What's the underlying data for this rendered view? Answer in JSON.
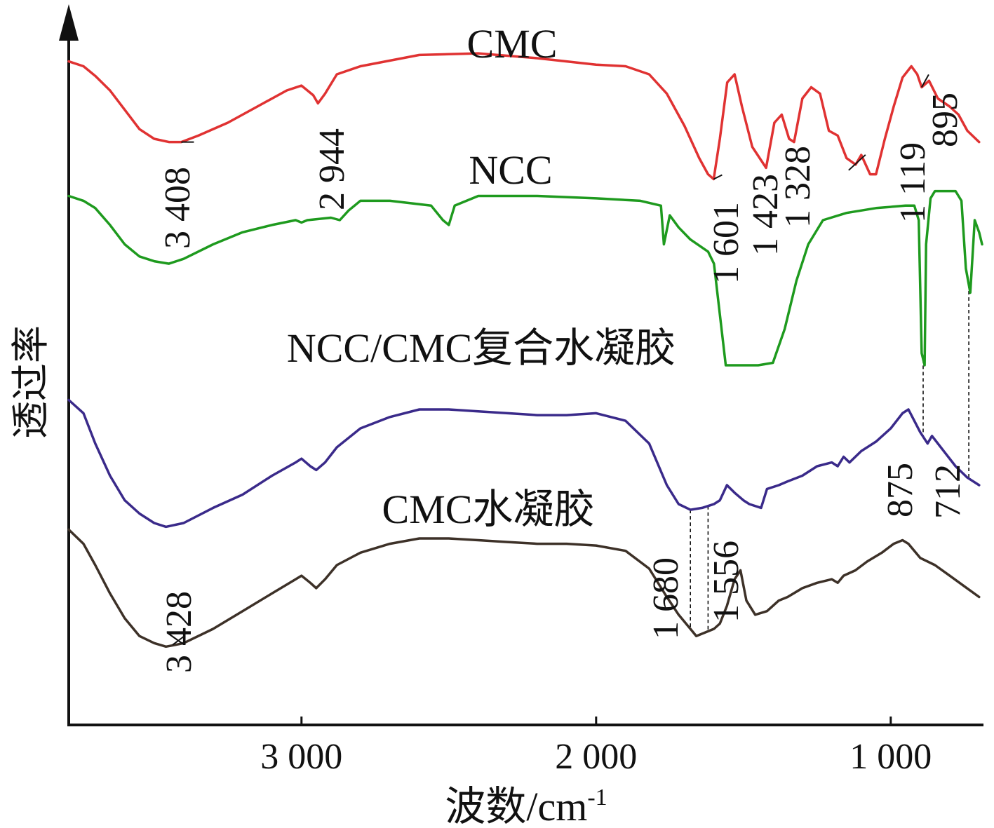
{
  "chart_data": {
    "type": "line",
    "xlabel": "波数/cm",
    "xlabel_sup": "-1",
    "ylabel": "透过率",
    "xlim": [
      3790,
      690
    ],
    "x_reversed": true,
    "x_ticks": [
      {
        "value": 3000,
        "label": "3 000"
      },
      {
        "value": 2000,
        "label": "2 000"
      },
      {
        "value": 1000,
        "label": "1 000"
      }
    ],
    "y_ticks_shown": false,
    "grid": false,
    "series": [
      {
        "name": "CMC",
        "color": "#e03232",
        "points": [
          [
            3790,
            88
          ],
          [
            3740,
            85
          ],
          [
            3700,
            79
          ],
          [
            3650,
            70
          ],
          [
            3600,
            58
          ],
          [
            3550,
            46
          ],
          [
            3500,
            40
          ],
          [
            3450,
            38
          ],
          [
            3408,
            38
          ],
          [
            3350,
            42
          ],
          [
            3250,
            50
          ],
          [
            3150,
            60
          ],
          [
            3050,
            70
          ],
          [
            3000,
            73
          ],
          [
            2960,
            67
          ],
          [
            2944,
            62
          ],
          [
            2920,
            68
          ],
          [
            2880,
            80
          ],
          [
            2800,
            85
          ],
          [
            2600,
            92
          ],
          [
            2400,
            93
          ],
          [
            2200,
            90
          ],
          [
            2000,
            86
          ],
          [
            1900,
            85
          ],
          [
            1820,
            80
          ],
          [
            1760,
            68
          ],
          [
            1700,
            48
          ],
          [
            1650,
            28
          ],
          [
            1620,
            18
          ],
          [
            1601,
            15
          ],
          [
            1580,
            40
          ],
          [
            1555,
            75
          ],
          [
            1530,
            80
          ],
          [
            1505,
            60
          ],
          [
            1470,
            35
          ],
          [
            1423,
            22
          ],
          [
            1395,
            50
          ],
          [
            1370,
            55
          ],
          [
            1345,
            40
          ],
          [
            1328,
            38
          ],
          [
            1300,
            65
          ],
          [
            1270,
            72
          ],
          [
            1240,
            68
          ],
          [
            1210,
            45
          ],
          [
            1180,
            42
          ],
          [
            1150,
            28
          ],
          [
            1119,
            24
          ],
          [
            1100,
            30
          ],
          [
            1070,
            18
          ],
          [
            1050,
            18
          ],
          [
            1020,
            40
          ],
          [
            990,
            60
          ],
          [
            960,
            78
          ],
          [
            930,
            85
          ],
          [
            910,
            80
          ],
          [
            895,
            72
          ],
          [
            870,
            76
          ],
          [
            840,
            65
          ],
          [
            800,
            60
          ],
          [
            770,
            55
          ],
          [
            740,
            45
          ],
          [
            700,
            38
          ]
        ]
      },
      {
        "name": "NCC",
        "color": "#1e9a1e",
        "points": [
          [
            3790,
            90
          ],
          [
            3740,
            88
          ],
          [
            3700,
            85
          ],
          [
            3650,
            78
          ],
          [
            3600,
            70
          ],
          [
            3550,
            65
          ],
          [
            3500,
            63
          ],
          [
            3450,
            62
          ],
          [
            3400,
            64
          ],
          [
            3300,
            70
          ],
          [
            3200,
            75
          ],
          [
            3100,
            78
          ],
          [
            3020,
            80
          ],
          [
            3000,
            79
          ],
          [
            2980,
            80
          ],
          [
            2900,
            81
          ],
          [
            2870,
            80
          ],
          [
            2840,
            84
          ],
          [
            2800,
            88
          ],
          [
            2700,
            88
          ],
          [
            2560,
            86
          ],
          [
            2520,
            80
          ],
          [
            2500,
            78
          ],
          [
            2480,
            86
          ],
          [
            2400,
            90
          ],
          [
            2200,
            90
          ],
          [
            2000,
            89
          ],
          [
            1850,
            88
          ],
          [
            1780,
            86
          ],
          [
            1770,
            70
          ],
          [
            1750,
            82
          ],
          [
            1720,
            77
          ],
          [
            1680,
            72
          ],
          [
            1620,
            67
          ],
          [
            1600,
            62
          ],
          [
            1560,
            20
          ],
          [
            1520,
            20
          ],
          [
            1450,
            20
          ],
          [
            1400,
            21
          ],
          [
            1360,
            35
          ],
          [
            1320,
            55
          ],
          [
            1280,
            70
          ],
          [
            1230,
            80
          ],
          [
            1150,
            83
          ],
          [
            1050,
            85
          ],
          [
            950,
            86
          ],
          [
            920,
            86
          ],
          [
            905,
            80
          ],
          [
            895,
            25
          ],
          [
            885,
            20
          ],
          [
            880,
            70
          ],
          [
            865,
            89
          ],
          [
            850,
            92
          ],
          [
            800,
            92
          ],
          [
            780,
            92
          ],
          [
            760,
            88
          ],
          [
            745,
            60
          ],
          [
            730,
            50
          ],
          [
            715,
            80
          ],
          [
            700,
            75
          ],
          [
            690,
            70
          ]
        ]
      },
      {
        "name": "NCC/CMC复合水凝胶",
        "color": "#3a2a8a",
        "points": [
          [
            3790,
            85
          ],
          [
            3740,
            78
          ],
          [
            3700,
            62
          ],
          [
            3650,
            45
          ],
          [
            3600,
            32
          ],
          [
            3550,
            25
          ],
          [
            3500,
            20
          ],
          [
            3460,
            18
          ],
          [
            3400,
            20
          ],
          [
            3300,
            28
          ],
          [
            3200,
            35
          ],
          [
            3100,
            45
          ],
          [
            3020,
            52
          ],
          [
            3000,
            54
          ],
          [
            2970,
            50
          ],
          [
            2950,
            48
          ],
          [
            2920,
            52
          ],
          [
            2880,
            60
          ],
          [
            2800,
            70
          ],
          [
            2700,
            76
          ],
          [
            2600,
            80
          ],
          [
            2500,
            80
          ],
          [
            2400,
            79
          ],
          [
            2300,
            78
          ],
          [
            2200,
            77
          ],
          [
            2100,
            77
          ],
          [
            2000,
            78
          ],
          [
            1900,
            74
          ],
          [
            1820,
            62
          ],
          [
            1760,
            40
          ],
          [
            1720,
            30
          ],
          [
            1680,
            27
          ],
          [
            1640,
            28
          ],
          [
            1600,
            30
          ],
          [
            1580,
            32
          ],
          [
            1556,
            40
          ],
          [
            1530,
            36
          ],
          [
            1500,
            32
          ],
          [
            1480,
            30
          ],
          [
            1440,
            28
          ],
          [
            1420,
            38
          ],
          [
            1380,
            40
          ],
          [
            1350,
            42
          ],
          [
            1300,
            45
          ],
          [
            1250,
            50
          ],
          [
            1200,
            52
          ],
          [
            1180,
            50
          ],
          [
            1160,
            55
          ],
          [
            1140,
            52
          ],
          [
            1100,
            58
          ],
          [
            1050,
            63
          ],
          [
            1000,
            70
          ],
          [
            960,
            78
          ],
          [
            940,
            80
          ],
          [
            920,
            74
          ],
          [
            900,
            68
          ],
          [
            875,
            62
          ],
          [
            860,
            66
          ],
          [
            820,
            58
          ],
          [
            780,
            50
          ],
          [
            740,
            44
          ],
          [
            700,
            40
          ]
        ]
      },
      {
        "name": "CMC水凝胶",
        "color": "#3d3128",
        "points": [
          [
            3790,
            88
          ],
          [
            3740,
            80
          ],
          [
            3700,
            68
          ],
          [
            3650,
            52
          ],
          [
            3600,
            38
          ],
          [
            3550,
            28
          ],
          [
            3500,
            24
          ],
          [
            3460,
            22
          ],
          [
            3428,
            23
          ],
          [
            3400,
            24
          ],
          [
            3300,
            32
          ],
          [
            3200,
            42
          ],
          [
            3100,
            52
          ],
          [
            3020,
            60
          ],
          [
            3000,
            62
          ],
          [
            2970,
            58
          ],
          [
            2950,
            55
          ],
          [
            2920,
            60
          ],
          [
            2880,
            68
          ],
          [
            2800,
            75
          ],
          [
            2700,
            80
          ],
          [
            2600,
            83
          ],
          [
            2500,
            83
          ],
          [
            2400,
            82
          ],
          [
            2300,
            81
          ],
          [
            2200,
            80
          ],
          [
            2100,
            80
          ],
          [
            2000,
            79
          ],
          [
            1900,
            76
          ],
          [
            1820,
            66
          ],
          [
            1760,
            50
          ],
          [
            1720,
            40
          ],
          [
            1680,
            32
          ],
          [
            1660,
            28
          ],
          [
            1630,
            30
          ],
          [
            1600,
            32
          ],
          [
            1580,
            35
          ],
          [
            1556,
            45
          ],
          [
            1530,
            60
          ],
          [
            1510,
            65
          ],
          [
            1490,
            48
          ],
          [
            1460,
            40
          ],
          [
            1420,
            42
          ],
          [
            1380,
            48
          ],
          [
            1350,
            50
          ],
          [
            1300,
            55
          ],
          [
            1250,
            58
          ],
          [
            1200,
            60
          ],
          [
            1180,
            58
          ],
          [
            1160,
            62
          ],
          [
            1120,
            65
          ],
          [
            1080,
            70
          ],
          [
            1030,
            75
          ],
          [
            990,
            80
          ],
          [
            960,
            82
          ],
          [
            940,
            80
          ],
          [
            900,
            72
          ],
          [
            850,
            68
          ],
          [
            800,
            62
          ],
          [
            750,
            56
          ],
          [
            700,
            50
          ]
        ]
      }
    ],
    "curve_labels": [
      "CMC",
      "NCC",
      "NCC/CMC复合水凝胶",
      "CMC水凝胶"
    ],
    "annotations": [
      {
        "text": "3 408",
        "series": "CMC",
        "x": 3408
      },
      {
        "text": "2 944",
        "series": "CMC",
        "x": 2944
      },
      {
        "text": "1 601",
        "series": "CMC",
        "x": 1601
      },
      {
        "text": "1 423",
        "series": "CMC",
        "x": 1423
      },
      {
        "text": "1 328",
        "series": "CMC",
        "x": 1328
      },
      {
        "text": "1 119",
        "series": "CMC",
        "x": 1119
      },
      {
        "text": "895",
        "series": "CMC",
        "x": 895
      },
      {
        "text": "3 428",
        "series": "CMC水凝胶",
        "x": 3428
      },
      {
        "text": "1 680",
        "series": "CMC水凝胶",
        "x": 1680
      },
      {
        "text": "1 556",
        "series": "CMC水凝胶",
        "x": 1556
      },
      {
        "text": "875",
        "series": "NCC/CMC复合水凝胶",
        "x": 875
      },
      {
        "text": "712",
        "series": "NCC",
        "x": 712
      }
    ]
  }
}
